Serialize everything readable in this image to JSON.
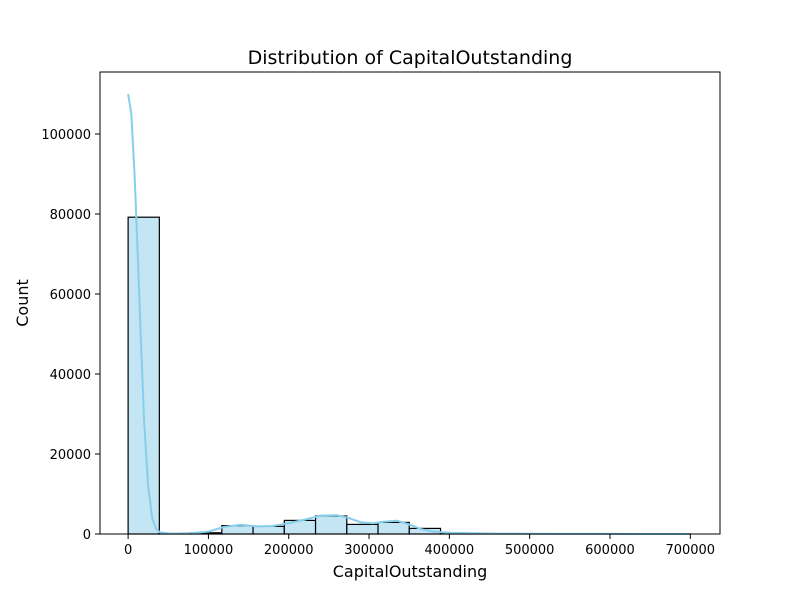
{
  "chart_data": {
    "type": "bar",
    "title": "Distribution of CapitalOutstanding",
    "xlabel": "CapitalOutstanding",
    "ylabel": "Count",
    "xlim": [
      -35000,
      737000
    ],
    "ylim": [
      0,
      115500
    ],
    "x_ticks": [
      0,
      100000,
      200000,
      300000,
      400000,
      500000,
      600000,
      700000
    ],
    "x_tick_labels": [
      "0",
      "100000",
      "200000",
      "300000",
      "400000",
      "500000",
      "600000",
      "700000"
    ],
    "y_ticks": [
      0,
      20000,
      40000,
      60000,
      80000,
      100000
    ],
    "y_tick_labels": [
      "0",
      "20000",
      "40000",
      "60000",
      "80000",
      "100000"
    ],
    "bin_width": 38900,
    "bins": [
      {
        "x0": 0,
        "count": 79200
      },
      {
        "x0": 38900,
        "count": 100
      },
      {
        "x0": 77800,
        "count": 300
      },
      {
        "x0": 116700,
        "count": 2100
      },
      {
        "x0": 155600,
        "count": 1900
      },
      {
        "x0": 194500,
        "count": 3400
      },
      {
        "x0": 233400,
        "count": 4500
      },
      {
        "x0": 272300,
        "count": 2400
      },
      {
        "x0": 311200,
        "count": 2900
      },
      {
        "x0": 350100,
        "count": 1400
      },
      {
        "x0": 389000,
        "count": 200
      },
      {
        "x0": 427900,
        "count": 100
      },
      {
        "x0": 466800,
        "count": 50
      },
      {
        "x0": 505700,
        "count": 20
      },
      {
        "x0": 544600,
        "count": 10
      },
      {
        "x0": 583500,
        "count": 10
      },
      {
        "x0": 622400,
        "count": 10
      },
      {
        "x0": 661300,
        "count": 10
      }
    ],
    "kde": {
      "x": [
        0,
        4000,
        8000,
        12000,
        16000,
        20000,
        25000,
        30000,
        35000,
        40000,
        50000,
        60000,
        80000,
        100000,
        120000,
        140000,
        160000,
        180000,
        200000,
        220000,
        240000,
        260000,
        275000,
        290000,
        305000,
        320000,
        335000,
        350000,
        365000,
        380000,
        400000,
        430000,
        460000,
        500000,
        550000,
        600000,
        650000,
        700000
      ],
      "y": [
        110000,
        105000,
        90000,
        70000,
        48000,
        28000,
        12000,
        4000,
        1200,
        400,
        150,
        100,
        250,
        600,
        1800,
        2300,
        1900,
        2000,
        2700,
        3600,
        4600,
        4700,
        4000,
        2900,
        2700,
        3100,
        3300,
        2400,
        1200,
        600,
        300,
        200,
        100,
        50,
        30,
        20,
        10,
        5
      ]
    },
    "bar_fill": "#c3e5f4",
    "bar_edge": "#000000",
    "kde_color": "#87ceeb",
    "grid": false,
    "legend": "none"
  }
}
